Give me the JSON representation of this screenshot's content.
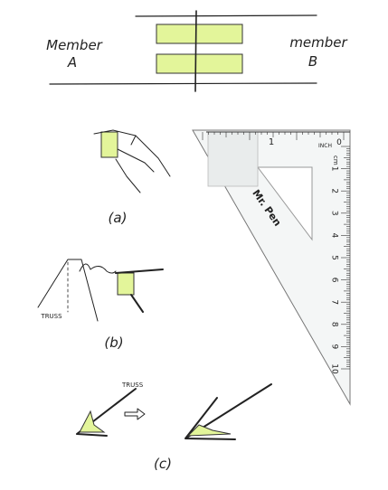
{
  "labels": {
    "member_a": [
      "Member",
      "A"
    ],
    "member_b": [
      "member",
      "B"
    ],
    "a": "(a)",
    "b": "(b)",
    "c": "(c)",
    "truss_b": "TRUSS",
    "truss_c": "TRUSS"
  },
  "ruler": {
    "brand": "Mr. Pen",
    "inch_label": "INCH",
    "cm_label": "cm",
    "inch_mark": "1",
    "zero": "0",
    "cm_numbers": [
      1,
      2,
      3,
      4,
      5,
      6,
      7,
      8,
      9,
      10
    ]
  }
}
